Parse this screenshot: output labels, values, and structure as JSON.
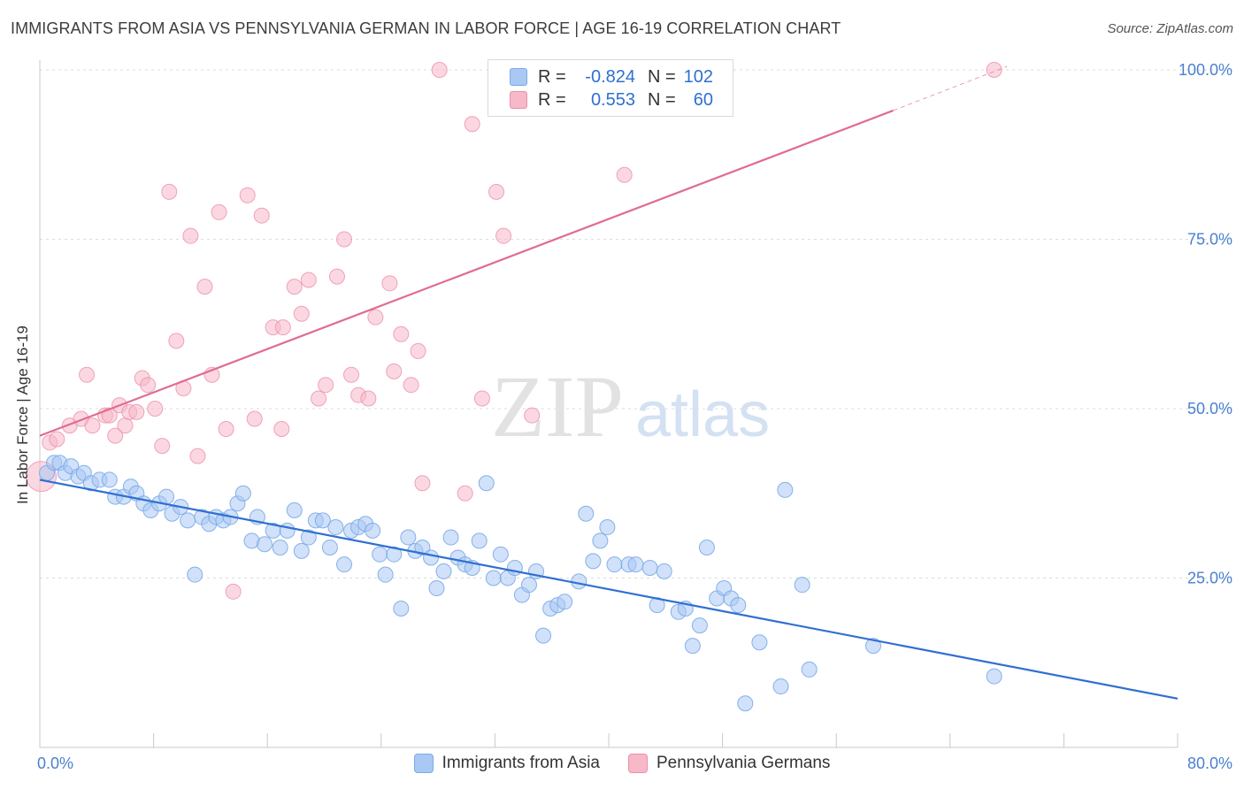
{
  "title": "IMMIGRANTS FROM ASIA VS PENNSYLVANIA GERMAN IN LABOR FORCE | AGE 16-19 CORRELATION CHART",
  "source": "Source: ZipAtlas.com",
  "watermark": {
    "zip": "ZIP",
    "atlas": "atlas"
  },
  "legend": {
    "r_label": "R =",
    "n_label": "N =",
    "rows": [
      {
        "r": "-0.824",
        "n": "102",
        "color": "#a9c8f4"
      },
      {
        "r": "0.553",
        "n": "60",
        "color": "#f7b8c8"
      }
    ]
  },
  "bottom_legend": [
    "Immigrants from Asia",
    "Pennsylvania Germans"
  ],
  "chart_data": {
    "type": "scatter",
    "title": "IMMIGRANTS FROM ASIA VS PENNSYLVANIA GERMAN IN LABOR FORCE | AGE 16-19 CORRELATION CHART",
    "xlabel": "",
    "ylabel": "In Labor Force | Age 16-19",
    "xlim": [
      0,
      80
    ],
    "ylim": [
      0,
      105
    ],
    "x_tick_labels": [
      "0.0%",
      "80.0%"
    ],
    "y_ticks": [
      25,
      50,
      75,
      100
    ],
    "y_tick_labels": [
      "25.0%",
      "50.0%",
      "75.0%",
      "100.0%"
    ],
    "grid": true,
    "colors": {
      "asia": "#7aaae8",
      "asia_fill": "#a9c8f4",
      "asia_line": "#2f6fd1",
      "pg": "#ec8fab",
      "pg_fill": "#f7b8c8",
      "pg_line": "#e06b93"
    },
    "series": [
      {
        "name": "Immigrants from Asia",
        "points": [
          [
            0.5,
            40.5
          ],
          [
            1.0,
            42
          ],
          [
            1.4,
            42
          ],
          [
            1.8,
            40.5
          ],
          [
            2.2,
            41.5
          ],
          [
            2.7,
            40
          ],
          [
            3.1,
            40.5
          ],
          [
            3.6,
            39
          ],
          [
            4.2,
            39.5
          ],
          [
            4.9,
            39.5
          ],
          [
            5.3,
            37
          ],
          [
            5.9,
            37
          ],
          [
            6.4,
            38.5
          ],
          [
            6.8,
            37.5
          ],
          [
            7.3,
            36
          ],
          [
            7.8,
            35
          ],
          [
            8.4,
            36
          ],
          [
            8.9,
            37
          ],
          [
            9.3,
            34.5
          ],
          [
            9.9,
            35.5
          ],
          [
            10.4,
            33.5
          ],
          [
            10.9,
            25.5
          ],
          [
            11.4,
            34
          ],
          [
            11.9,
            33
          ],
          [
            12.4,
            34
          ],
          [
            12.9,
            33.5
          ],
          [
            13.4,
            34
          ],
          [
            13.9,
            36
          ],
          [
            14.3,
            37.5
          ],
          [
            14.9,
            30.5
          ],
          [
            15.3,
            34
          ],
          [
            15.8,
            30
          ],
          [
            16.4,
            32
          ],
          [
            16.9,
            29.5
          ],
          [
            17.4,
            32
          ],
          [
            17.9,
            35
          ],
          [
            18.4,
            29
          ],
          [
            18.9,
            31
          ],
          [
            19.4,
            33.5
          ],
          [
            19.9,
            33.5
          ],
          [
            20.4,
            29.5
          ],
          [
            20.8,
            32.5
          ],
          [
            21.4,
            27
          ],
          [
            21.9,
            32
          ],
          [
            22.4,
            32.5
          ],
          [
            22.9,
            33
          ],
          [
            23.4,
            32
          ],
          [
            23.9,
            28.5
          ],
          [
            24.3,
            25.5
          ],
          [
            24.9,
            28.5
          ],
          [
            25.4,
            20.5
          ],
          [
            25.9,
            31
          ],
          [
            26.4,
            29
          ],
          [
            26.9,
            29.5
          ],
          [
            27.5,
            28
          ],
          [
            27.9,
            23.5
          ],
          [
            28.4,
            26
          ],
          [
            28.9,
            31
          ],
          [
            29.4,
            28
          ],
          [
            29.9,
            27
          ],
          [
            30.4,
            26.5
          ],
          [
            30.9,
            30.5
          ],
          [
            31.4,
            39
          ],
          [
            31.9,
            25
          ],
          [
            32.4,
            28.5
          ],
          [
            32.9,
            25
          ],
          [
            33.4,
            26.5
          ],
          [
            33.9,
            22.5
          ],
          [
            34.4,
            24
          ],
          [
            34.9,
            26
          ],
          [
            35.4,
            16.5
          ],
          [
            35.9,
            20.5
          ],
          [
            36.4,
            21
          ],
          [
            36.9,
            21.5
          ],
          [
            37.9,
            24.5
          ],
          [
            38.4,
            34.5
          ],
          [
            38.9,
            27.5
          ],
          [
            39.4,
            30.5
          ],
          [
            39.9,
            32.5
          ],
          [
            40.4,
            27
          ],
          [
            41.4,
            27
          ],
          [
            41.9,
            27
          ],
          [
            42.9,
            26.5
          ],
          [
            43.4,
            21
          ],
          [
            43.9,
            26
          ],
          [
            44.9,
            20
          ],
          [
            45.4,
            20.5
          ],
          [
            45.9,
            15
          ],
          [
            46.4,
            18
          ],
          [
            46.9,
            29.5
          ],
          [
            47.6,
            22
          ],
          [
            48.1,
            23.5
          ],
          [
            48.6,
            22
          ],
          [
            49.1,
            21
          ],
          [
            49.6,
            6.5
          ],
          [
            50.6,
            15.5
          ],
          [
            52.1,
            9
          ],
          [
            52.4,
            38
          ],
          [
            53.6,
            24
          ],
          [
            54.1,
            11.5
          ],
          [
            58.6,
            15
          ],
          [
            67.1,
            10.5
          ]
        ]
      },
      {
        "name": "Pennsylvania Germans",
        "points": [
          [
            0.1,
            40
          ],
          [
            0.7,
            45
          ],
          [
            1.2,
            45.5
          ],
          [
            2.1,
            47.5
          ],
          [
            2.9,
            48.5
          ],
          [
            3.3,
            55
          ],
          [
            3.7,
            47.5
          ],
          [
            4.6,
            49
          ],
          [
            4.9,
            49
          ],
          [
            5.3,
            46
          ],
          [
            5.6,
            50.5
          ],
          [
            6.0,
            47.5
          ],
          [
            6.3,
            49.5
          ],
          [
            6.8,
            49.5
          ],
          [
            7.2,
            54.5
          ],
          [
            7.6,
            53.5
          ],
          [
            8.1,
            50
          ],
          [
            8.6,
            44.5
          ],
          [
            9.1,
            82
          ],
          [
            9.6,
            60
          ],
          [
            10.1,
            53
          ],
          [
            10.6,
            75.5
          ],
          [
            11.1,
            43
          ],
          [
            11.6,
            68
          ],
          [
            12.1,
            55
          ],
          [
            12.6,
            79
          ],
          [
            13.1,
            47
          ],
          [
            13.6,
            23
          ],
          [
            14.6,
            81.5
          ],
          [
            15.1,
            48.5
          ],
          [
            15.6,
            78.5
          ],
          [
            16.4,
            62
          ],
          [
            17.0,
            47
          ],
          [
            17.1,
            62
          ],
          [
            17.9,
            68
          ],
          [
            18.4,
            64
          ],
          [
            18.9,
            69
          ],
          [
            19.6,
            51.5
          ],
          [
            20.1,
            53.5
          ],
          [
            20.9,
            69.5
          ],
          [
            21.4,
            75
          ],
          [
            21.9,
            55
          ],
          [
            22.4,
            52
          ],
          [
            23.1,
            51.5
          ],
          [
            23.6,
            63.5
          ],
          [
            24.6,
            68.5
          ],
          [
            24.9,
            55.5
          ],
          [
            25.4,
            61
          ],
          [
            26.1,
            53.5
          ],
          [
            26.6,
            58.5
          ],
          [
            26.9,
            39
          ],
          [
            28.1,
            100
          ],
          [
            29.9,
            37.5
          ],
          [
            30.4,
            92
          ],
          [
            31.1,
            51.5
          ],
          [
            32.1,
            82
          ],
          [
            32.6,
            75.5
          ],
          [
            34.6,
            49
          ],
          [
            41.1,
            84.5
          ],
          [
            67.1,
            100
          ]
        ]
      }
    ],
    "trendlines": [
      {
        "series": "Immigrants from Asia",
        "x": [
          0,
          80
        ],
        "y": [
          39.5,
          7.2
        ]
      },
      {
        "series": "Pennsylvania Germans",
        "x": [
          0,
          60
        ],
        "y": [
          46,
          94
        ],
        "dashed_extension": {
          "x": [
            60,
            68
          ],
          "y": [
            94,
            100.5
          ]
        }
      }
    ]
  }
}
